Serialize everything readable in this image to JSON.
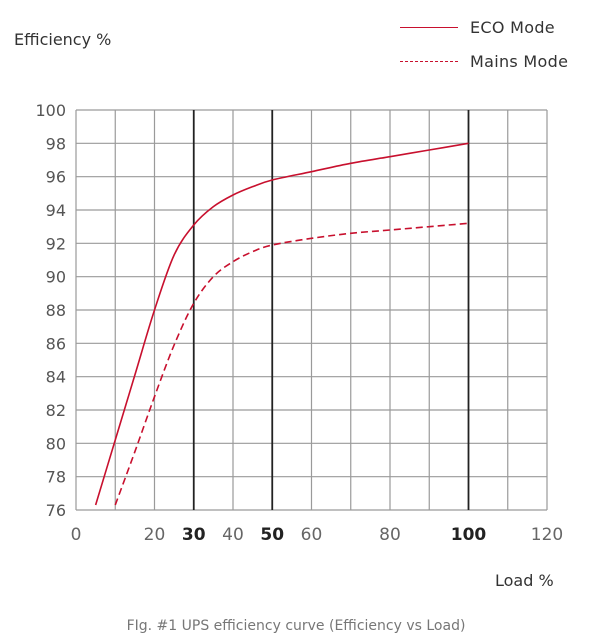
{
  "chart_data": {
    "type": "line",
    "ylabel": "Efficiency %",
    "xlabel": "Load %",
    "xlim": [
      0,
      120
    ],
    "ylim": [
      76,
      100
    ],
    "x_ticks": [
      0,
      20,
      30,
      40,
      50,
      60,
      80,
      100,
      120
    ],
    "x_ticks_bold": [
      30,
      50,
      100
    ],
    "y_ticks": [
      76,
      78,
      80,
      82,
      84,
      86,
      88,
      90,
      92,
      94,
      96,
      98,
      100
    ],
    "grid": true,
    "legend_position": "top-right",
    "series": [
      {
        "name": "ECO Mode",
        "style": "solid",
        "color": "#c8102e",
        "points": [
          [
            5,
            76.3
          ],
          [
            10,
            80.2
          ],
          [
            15,
            84.1
          ],
          [
            20,
            88.0
          ],
          [
            25,
            91.3
          ],
          [
            30,
            93.1
          ],
          [
            35,
            94.2
          ],
          [
            40,
            94.9
          ],
          [
            45,
            95.4
          ],
          [
            50,
            95.8
          ],
          [
            60,
            96.3
          ],
          [
            70,
            96.8
          ],
          [
            80,
            97.2
          ],
          [
            90,
            97.6
          ],
          [
            100,
            98.0
          ]
        ]
      },
      {
        "name": "Mains Mode",
        "style": "dashed",
        "color": "#c8102e",
        "points": [
          [
            10,
            76.3
          ],
          [
            15,
            79.5
          ],
          [
            20,
            82.8
          ],
          [
            25,
            85.9
          ],
          [
            30,
            88.4
          ],
          [
            35,
            90.0
          ],
          [
            40,
            90.9
          ],
          [
            45,
            91.5
          ],
          [
            50,
            91.9
          ],
          [
            60,
            92.3
          ],
          [
            70,
            92.6
          ],
          [
            80,
            92.8
          ],
          [
            90,
            93.0
          ],
          [
            100,
            93.2
          ]
        ]
      }
    ]
  },
  "caption": "FIg. #1 UPS efficiency curve (Efficiency vs Load)"
}
